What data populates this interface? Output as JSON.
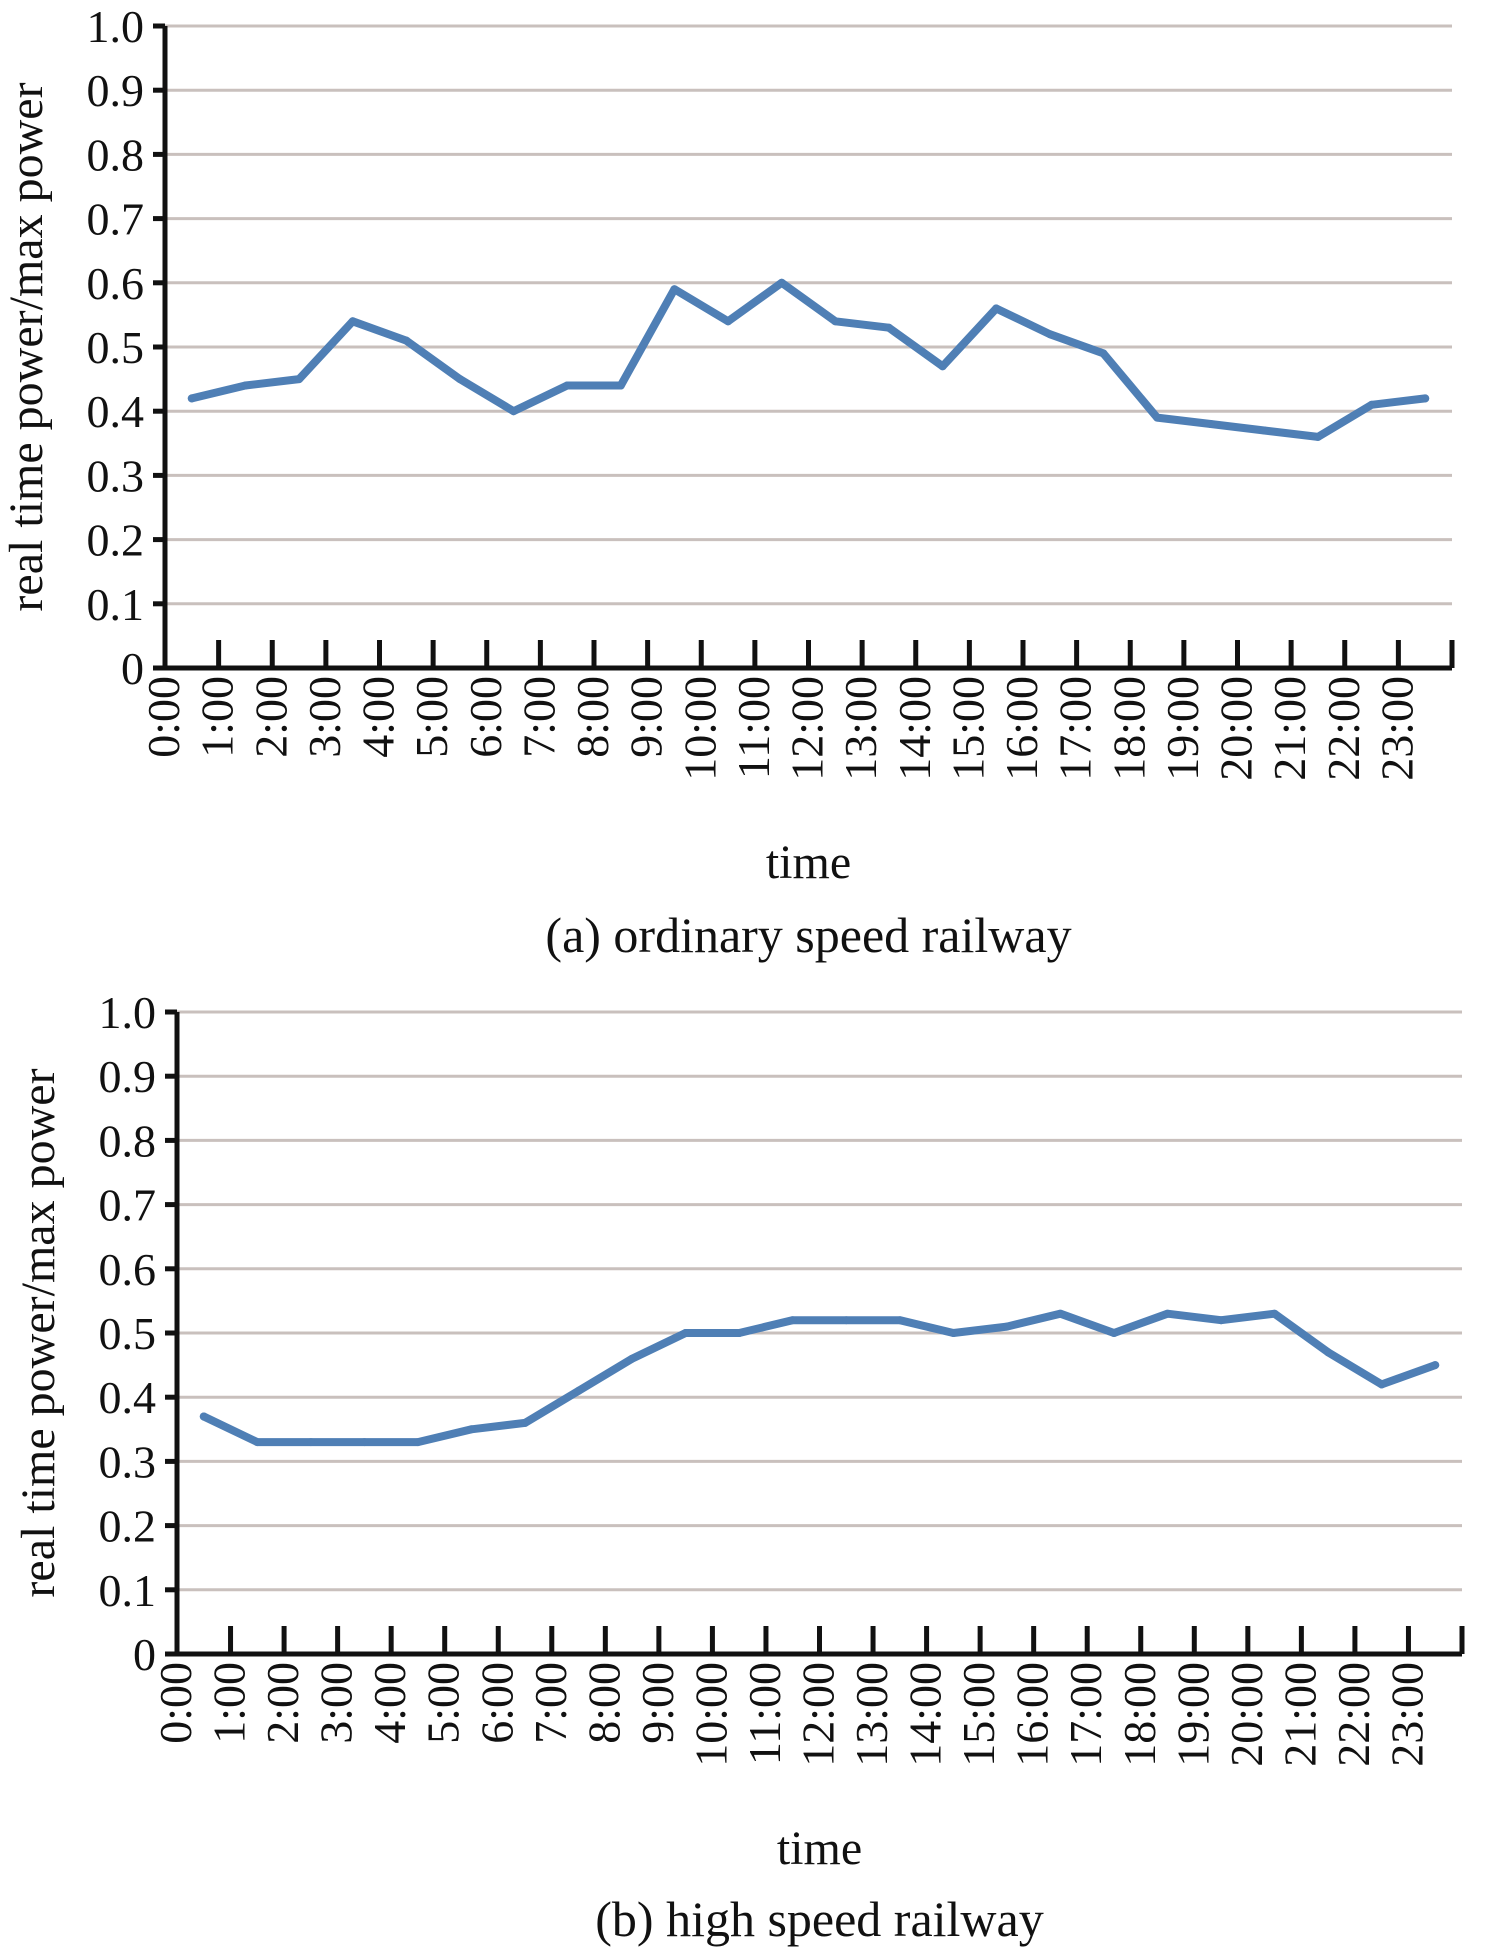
{
  "chart_data": [
    {
      "type": "line",
      "caption": "(a) ordinary speed railway",
      "xlabel": "time",
      "ylabel": "real time power/max power",
      "ylim": [
        0,
        1
      ],
      "y_ticks": [
        "0",
        "0.1",
        "0.2",
        "0.3",
        "0.4",
        "0.5",
        "0.6",
        "0.7",
        "0.8",
        "0.9",
        "1.0"
      ],
      "grid": true,
      "categories": [
        "0:00",
        "1:00",
        "2:00",
        "3:00",
        "4:00",
        "5:00",
        "6:00",
        "7:00",
        "8:00",
        "9:00",
        "10:00",
        "11:00",
        "12:00",
        "13:00",
        "14:00",
        "15:00",
        "16:00",
        "17:00",
        "18:00",
        "19:00",
        "20:00",
        "21:00",
        "22:00",
        "23:00"
      ],
      "series": [
        {
          "color": "#4f7fb5",
          "values": [
            0.42,
            0.44,
            0.45,
            0.54,
            0.51,
            0.45,
            0.4,
            0.44,
            0.44,
            0.59,
            0.54,
            0.6,
            0.54,
            0.53,
            0.47,
            0.56,
            0.52,
            0.49,
            0.39,
            0.38,
            0.37,
            0.36,
            0.41,
            0.42
          ]
        }
      ]
    },
    {
      "type": "line",
      "caption": "(b) high speed railway",
      "xlabel": "time",
      "ylabel": "real time power/max power",
      "ylim": [
        0,
        1
      ],
      "y_ticks": [
        "0",
        "0.1",
        "0.2",
        "0.3",
        "0.4",
        "0.5",
        "0.6",
        "0.7",
        "0.8",
        "0.9",
        "1.0"
      ],
      "grid": true,
      "categories": [
        "0:00",
        "1:00",
        "2:00",
        "3:00",
        "4:00",
        "5:00",
        "6:00",
        "7:00",
        "8:00",
        "9:00",
        "10:00",
        "11:00",
        "12:00",
        "13:00",
        "14:00",
        "15:00",
        "16:00",
        "17:00",
        "18:00",
        "19:00",
        "20:00",
        "21:00",
        "22:00",
        "23:00"
      ],
      "series": [
        {
          "color": "#4f7fb5",
          "values": [
            0.37,
            0.33,
            0.33,
            0.33,
            0.33,
            0.35,
            0.36,
            0.41,
            0.46,
            0.5,
            0.5,
            0.52,
            0.52,
            0.52,
            0.5,
            0.51,
            0.53,
            0.5,
            0.53,
            0.52,
            0.53,
            0.47,
            0.42,
            0.45
          ]
        }
      ]
    }
  ]
}
